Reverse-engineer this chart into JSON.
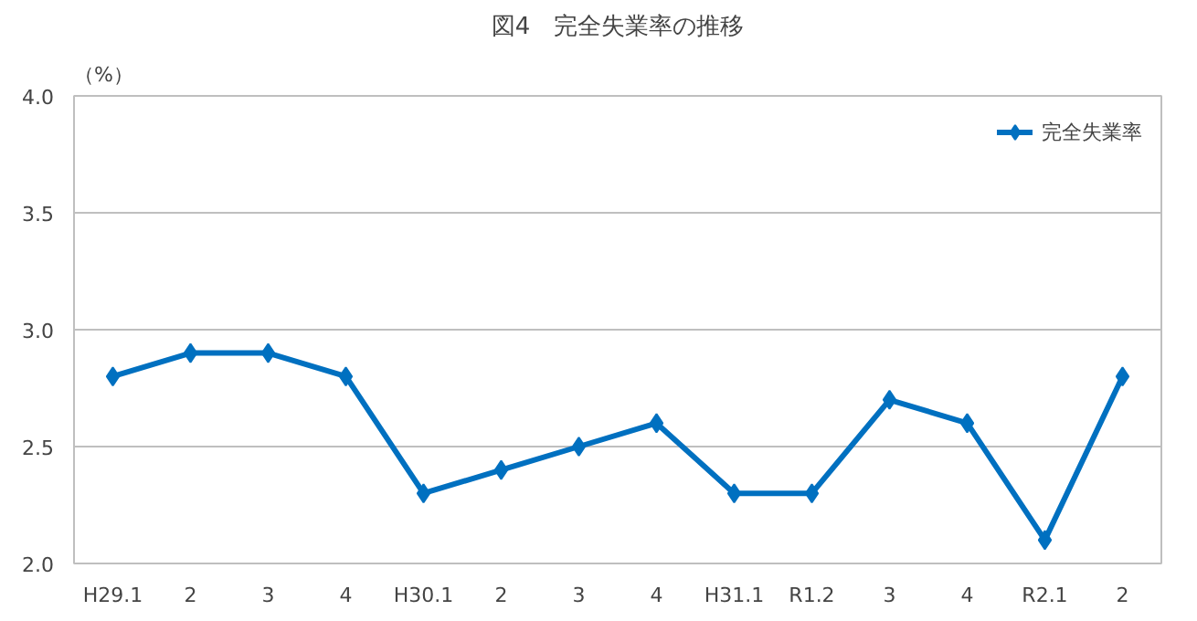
{
  "chart_data": {
    "type": "line",
    "title": "図4　完全失業率の推移",
    "ylabel": "（%）",
    "categories": [
      "H29.1",
      "2",
      "3",
      "4",
      "H30.1",
      "2",
      "3",
      "4",
      "H31.1",
      "R1.2",
      "3",
      "4",
      "R2.1",
      "2"
    ],
    "series": [
      {
        "name": "完全失業率",
        "color": "#0070c0",
        "values": [
          2.8,
          2.9,
          2.9,
          2.8,
          2.3,
          2.4,
          2.5,
          2.6,
          2.3,
          2.3,
          2.7,
          2.6,
          2.1,
          2.8
        ]
      }
    ],
    "ylim": [
      2.0,
      4.0
    ],
    "yticks": [
      {
        "value": 2.0,
        "label": "2.0"
      },
      {
        "value": 2.5,
        "label": "2.5"
      },
      {
        "value": 3.0,
        "label": "3.0"
      },
      {
        "value": 3.5,
        "label": "3.5"
      },
      {
        "value": 4.0,
        "label": "4.0"
      }
    ],
    "grid": "y",
    "legend": "top right",
    "marker": "diamond",
    "line_style": "solid"
  }
}
